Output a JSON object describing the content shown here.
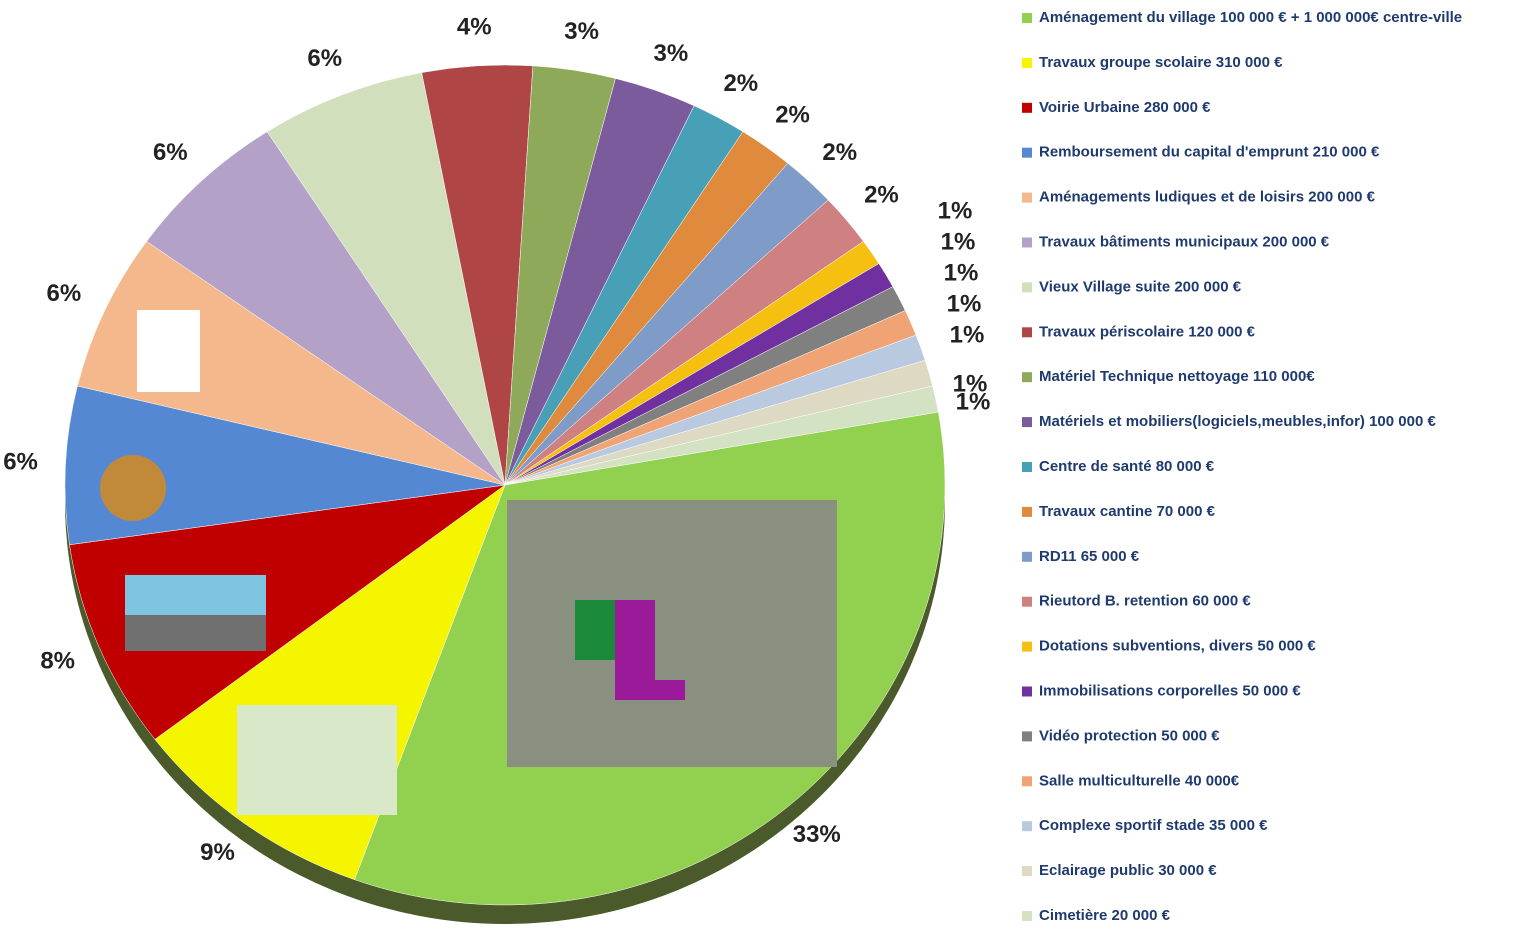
{
  "chart_data": {
    "type": "pie",
    "categories": [
      "Aménagement du village 100 000 € + 1 000 000€ centre-ville",
      "Travaux groupe scolaire 310 000 €",
      "Voirie Urbaine  280 000 €",
      "Remboursement du capital d'emprunt 210 000 €",
      "Aménagements ludiques et de loisirs 200 000 €",
      "Travaux bâtiments municipaux 200 000 €",
      "Vieux Village suite 200 000 €",
      "Travaux périscolaire 120 000 €",
      "Matériel Technique nettoyage  110 000€",
      "Matériels et mobiliers(logiciels,meubles,infor) 100 000 €",
      "Centre de santé 80 000 €",
      "Travaux cantine 70 000 €",
      "RD11  65 000 €",
      "Rieutord B. retention 60 000 €",
      "Dotations subventions, divers 50 000 €",
      "Immobilisations corporelles 50 000 €",
      "Vidéo protection 50 000 €",
      "Salle multiculturelle 40 000€",
      "Complexe sportif stade 35 000 €",
      "Eclairage  public 30 000 €",
      "Cimetière 20 000 €"
    ],
    "values": [
      33,
      9,
      8,
      6,
      6,
      6,
      6,
      4,
      3,
      3,
      2,
      2,
      2,
      2,
      1,
      1,
      1,
      1,
      1,
      1,
      1
    ],
    "value_labels": [
      "33%",
      "9%",
      "8%",
      "6%",
      "6%",
      "6%",
      "6%",
      "4%",
      "3%",
      "3%",
      "2%",
      "2%",
      "2%",
      "2%",
      "1%",
      "1%",
      "1%",
      "1%",
      "1%",
      "1%",
      "1%"
    ],
    "colors": [
      "#92d050",
      "#f5f500",
      "#c00000",
      "#5588d2",
      "#f4b88c",
      "#b3a1c8",
      "#d2dfbd",
      "#b04545",
      "#8fa95a",
      "#7b5b9b",
      "#47a0b6",
      "#e08a3e",
      "#7f9cc8",
      "#cf8080",
      "#f5c010",
      "#7030a0",
      "#808080",
      "#f0a476",
      "#b9c9e0",
      "#ddd9c2",
      "#d2e2c2"
    ],
    "legend": "right"
  }
}
